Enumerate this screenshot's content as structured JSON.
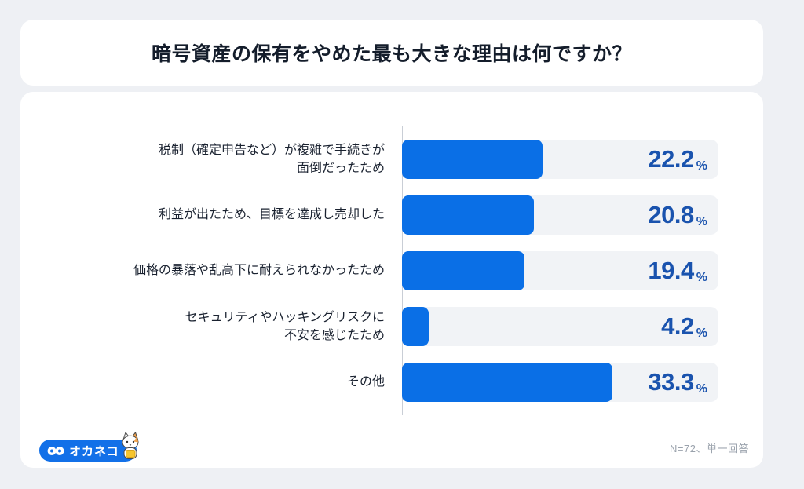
{
  "page": {
    "background": "#eef0f4",
    "card_color": "#ffffff"
  },
  "header": {
    "title": "暗号資産の保有をやめた最も大きな理由は何ですか？"
  },
  "chart_data": {
    "type": "bar",
    "orientation": "horizontal",
    "title": "暗号資産の保有をやめた最も大きな理由は何ですか？",
    "categories": [
      "税制（確定申告など）が複雑で手続きが\n面倒だったため",
      "利益が出たため、目標を達成し売却した",
      "価格の暴落や乱高下に耐えられなかったため",
      "セキュリティやハッキングリスクに\n不安を感じたため",
      "その他"
    ],
    "values": [
      22.2,
      20.8,
      19.4,
      4.2,
      33.3
    ],
    "value_labels": [
      "22.2",
      "20.8",
      "19.4",
      "4.2",
      "33.3"
    ],
    "unit": "%",
    "xlim": [
      0,
      50
    ],
    "grid": false,
    "legend": "none",
    "bar_color": "#0a6fe6",
    "track_color": "#f1f3f6",
    "value_color": "#1a53ae",
    "axis_color": "#c9ced6"
  },
  "footer": {
    "logo_text": "オカネコ",
    "logo_mark": "infinity-eyes-icon",
    "mascot": "cat-mascot-icon",
    "note": "N=72、単一回答"
  }
}
